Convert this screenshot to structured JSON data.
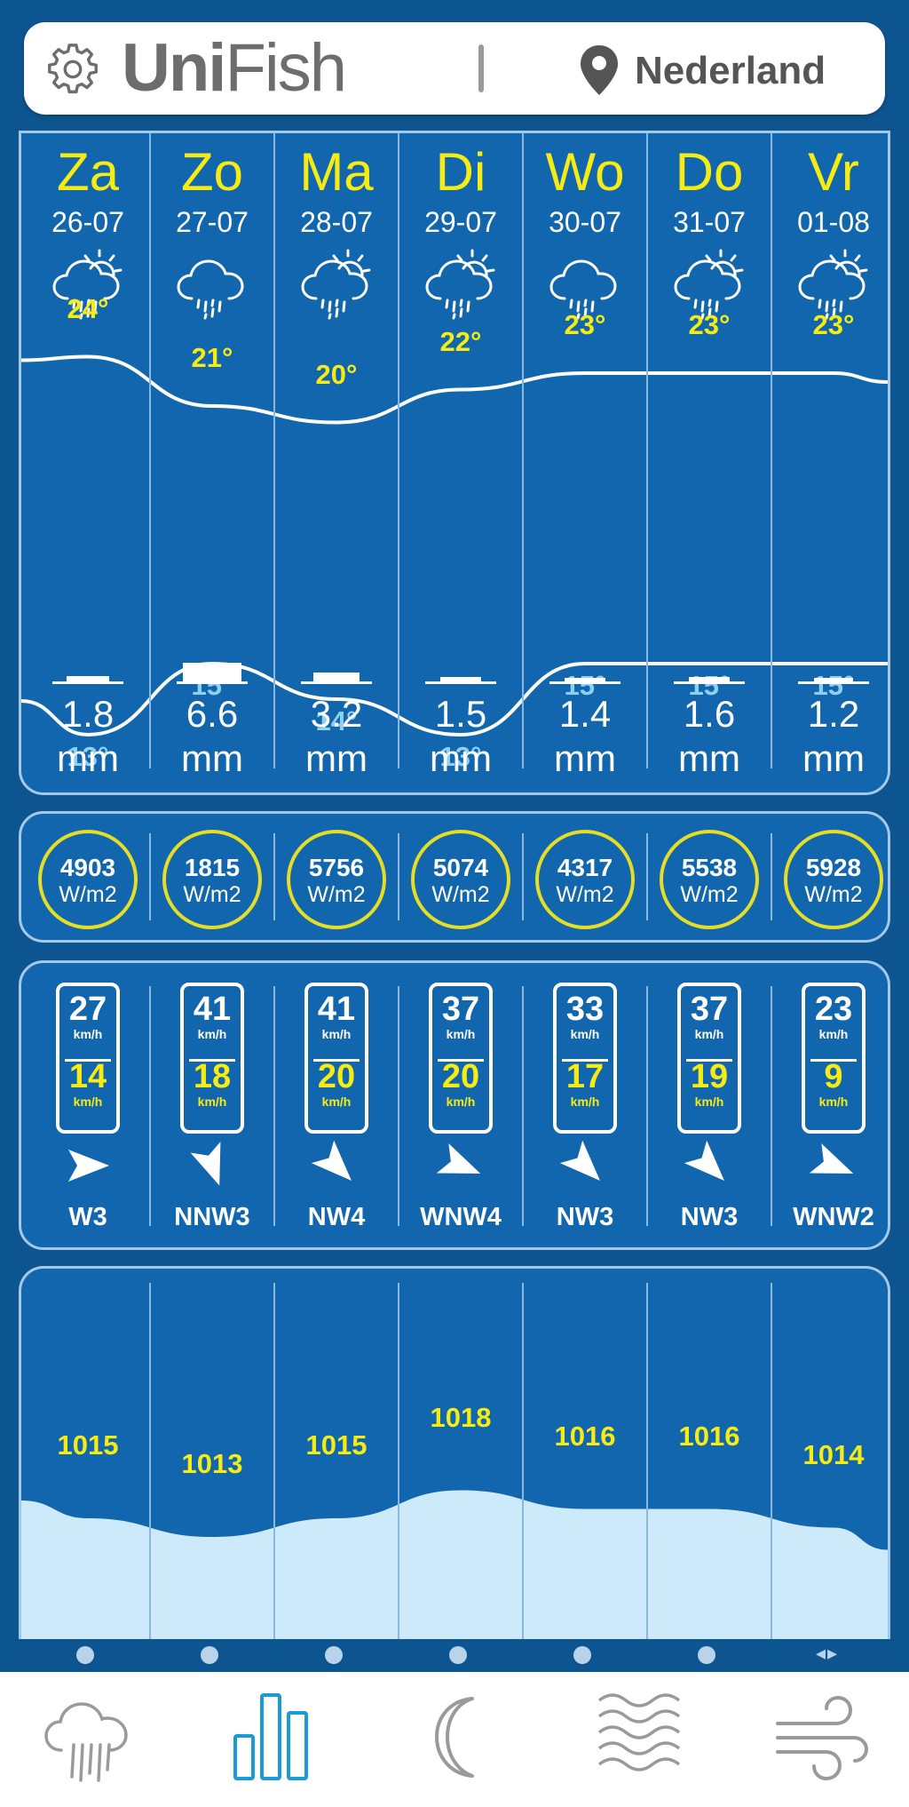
{
  "header": {
    "logo_part1": "Uni",
    "logo_part2": "Fish",
    "location": "Nederland",
    "icons": [
      "gear-icon",
      "location-pin-icon"
    ]
  },
  "colors": {
    "background": "#0d5590",
    "panel": "#1266ad",
    "highlight_yellow": "#f6ec14",
    "min_temp_blue": "#8fd0f0",
    "pressure_fill": "#cdeafb",
    "nav_active": "#1a9ad6",
    "nav_inactive": "#9a9a9a"
  },
  "days": [
    {
      "name": "Za",
      "date": "26-07",
      "icon": "rain-sun-icon",
      "tmax": "24°",
      "tmin": "13°",
      "rain": "1.8",
      "rain_unit": "mm",
      "sun": "4903",
      "sun_unit": "W/m2",
      "gust": "27",
      "wind": "14",
      "wind_unit": "km/h",
      "dir": "W3",
      "pressure": "1015"
    },
    {
      "name": "Zo",
      "date": "27-07",
      "icon": "rain-cloud-icon",
      "tmax": "21°",
      "tmin": "15°",
      "rain": "6.6",
      "rain_unit": "mm",
      "sun": "1815",
      "sun_unit": "W/m2",
      "gust": "41",
      "wind": "18",
      "wind_unit": "km/h",
      "dir": "NNW3",
      "pressure": "1013"
    },
    {
      "name": "Ma",
      "date": "28-07",
      "icon": "rain-sun-icon",
      "tmax": "20°",
      "tmin": "14°",
      "rain": "3.2",
      "rain_unit": "mm",
      "sun": "5756",
      "sun_unit": "W/m2",
      "gust": "41",
      "wind": "20",
      "wind_unit": "km/h",
      "dir": "NW4",
      "pressure": "1015"
    },
    {
      "name": "Di",
      "date": "29-07",
      "icon": "rain-sun-icon",
      "tmax": "22°",
      "tmin": "13°",
      "rain": "1.5",
      "rain_unit": "mm",
      "sun": "5074",
      "sun_unit": "W/m2",
      "gust": "37",
      "wind": "20",
      "wind_unit": "km/h",
      "dir": "WNW4",
      "pressure": "1018"
    },
    {
      "name": "Wo",
      "date": "30-07",
      "icon": "rain-cloud-icon",
      "tmax": "23°",
      "tmin": "15°",
      "rain": "1.4",
      "rain_unit": "mm",
      "sun": "4317",
      "sun_unit": "W/m2",
      "gust": "33",
      "wind": "17",
      "wind_unit": "km/h",
      "dir": "NW3",
      "pressure": "1016"
    },
    {
      "name": "Do",
      "date": "31-07",
      "icon": "rain-sun-icon",
      "tmax": "23°",
      "tmin": "15°",
      "rain": "1.6",
      "rain_unit": "mm",
      "sun": "5538",
      "sun_unit": "W/m2",
      "gust": "37",
      "wind": "19",
      "wind_unit": "km/h",
      "dir": "NW3",
      "pressure": "1016"
    },
    {
      "name": "Vr",
      "date": "01-08",
      "icon": "rain-sun-icon",
      "tmax": "23°",
      "tmin": "15°",
      "rain": "1.2",
      "rain_unit": "mm",
      "sun": "5928",
      "sun_unit": "W/m2",
      "gust": "23",
      "wind": "9",
      "wind_unit": "km/h",
      "dir": "WNW2",
      "pressure": "1014"
    }
  ],
  "chart_data": [
    {
      "type": "line",
      "categories": [
        "Za",
        "Zo",
        "Ma",
        "Di",
        "Wo",
        "Do",
        "Vr"
      ],
      "series": [
        {
          "name": "",
          "values": [
            24,
            21,
            20,
            22,
            23,
            23,
            23
          ]
        },
        {
          "name": "",
          "values": [
            13,
            15,
            14,
            13,
            15,
            15,
            15
          ]
        }
      ]
    },
    {
      "type": "bar",
      "categories": [
        "Za",
        "Zo",
        "Ma",
        "Di",
        "Wo",
        "Do",
        "Vr"
      ],
      "values": [
        1.8,
        6.6,
        3.2,
        1.5,
        1.4,
        1.6,
        1.2
      ]
    },
    {
      "type": "area",
      "categories": [
        "Za",
        "Zo",
        "Ma",
        "Di",
        "Wo",
        "Do",
        "Vr"
      ],
      "values": [
        1015,
        1013,
        1015,
        1018,
        1016,
        1016,
        1014
      ]
    }
  ],
  "pager": {
    "dots": 6,
    "active_indicator": "◂▸"
  },
  "nav": [
    {
      "name": "rain-icon",
      "active": false
    },
    {
      "name": "chart-bars-icon",
      "active": true
    },
    {
      "name": "moon-icon",
      "active": false
    },
    {
      "name": "waves-icon",
      "active": false
    },
    {
      "name": "wind-icon",
      "active": false
    }
  ]
}
